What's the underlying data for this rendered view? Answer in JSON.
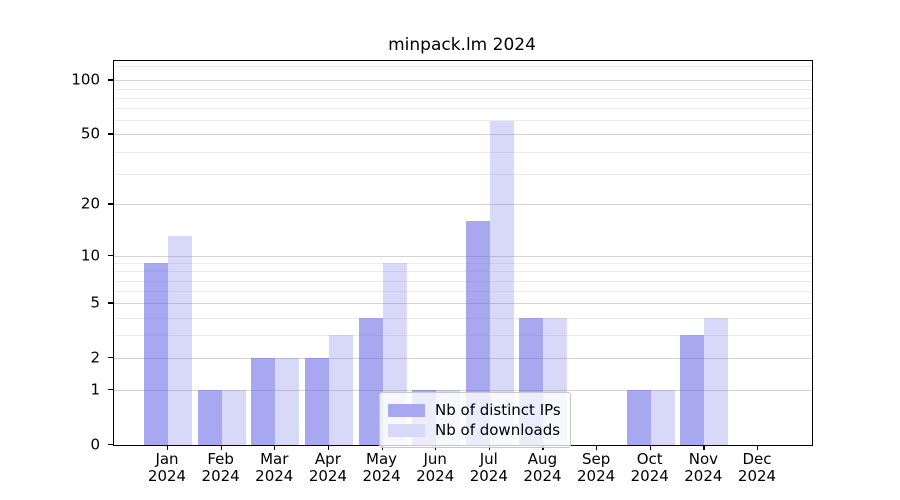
{
  "title": "minpack.lm 2024",
  "year_label": "2024",
  "legend": {
    "items": [
      {
        "label": "Nb of distinct IPs",
        "swatch_color": "#a8a8f1"
      },
      {
        "label": "Nb of downloads",
        "swatch_color": "#d8d8f9"
      }
    ]
  },
  "chart_data": {
    "type": "bar",
    "title": "minpack.lm 2024",
    "y_scale": "log1p",
    "grid": true,
    "legend_position": "lower center",
    "categories": [
      "Jan",
      "Feb",
      "Mar",
      "Apr",
      "May",
      "Jun",
      "Jul",
      "Aug",
      "Sep",
      "Oct",
      "Nov",
      "Dec"
    ],
    "category_year": "2024",
    "series": [
      {
        "name": "Nb of distinct IPs",
        "color": "#a8a8f1",
        "values": [
          9,
          1,
          2,
          2,
          4,
          1,
          16,
          4,
          0,
          1,
          3,
          0
        ]
      },
      {
        "name": "Nb of downloads",
        "color": "#d8d8f9",
        "values": [
          13,
          1,
          2,
          3,
          9,
          1,
          59,
          4,
          0,
          1,
          4,
          0
        ]
      }
    ],
    "y_major_ticks": [
      0,
      1,
      2,
      5,
      10,
      20,
      50,
      100
    ],
    "y_minor_ticks": [
      3,
      4,
      6,
      7,
      8,
      9,
      30,
      40,
      60,
      70,
      80,
      90,
      120
    ],
    "ylim": [
      0,
      128
    ]
  }
}
